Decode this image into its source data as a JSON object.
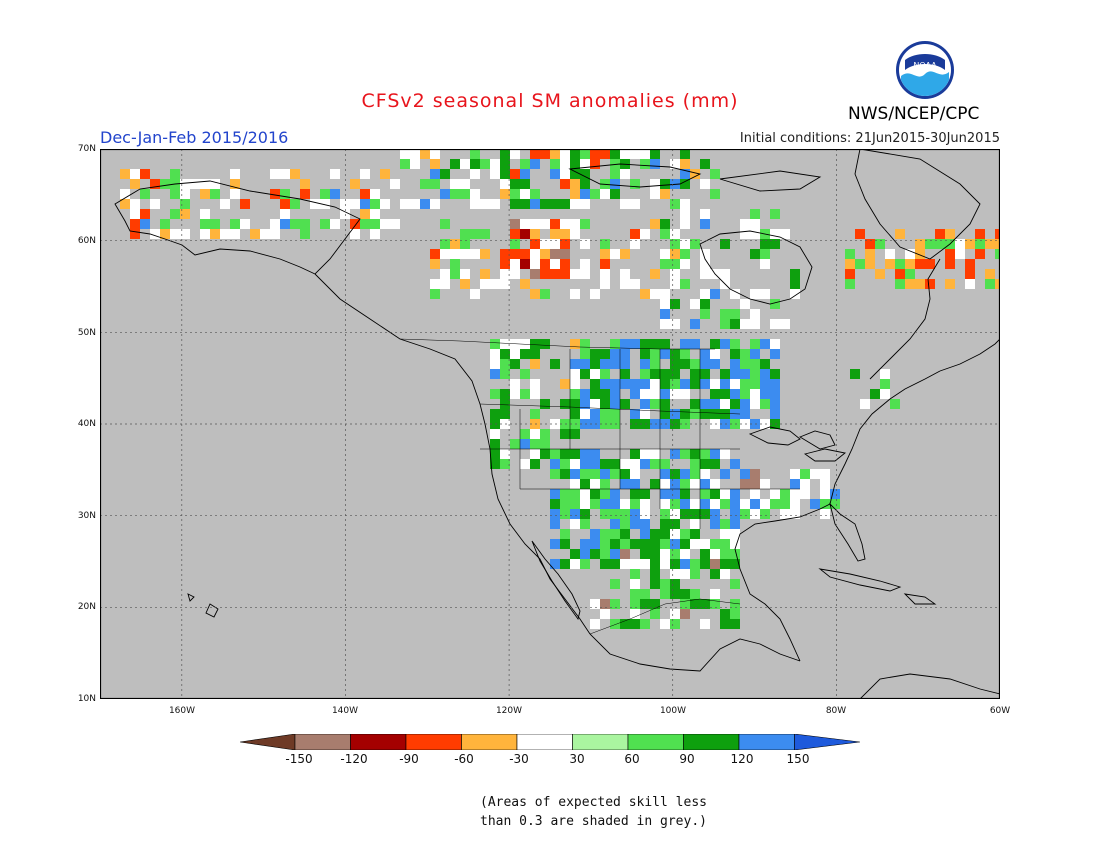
{
  "header": {
    "title": "CFSv2 seasonal SM anomalies (mm)",
    "season": "Dec-Jan-Feb 2015/2016",
    "initial_conditions": "Initial conditions: 21Jun2015-30Jun2015",
    "agency": "NWS/NCEP/CPC",
    "logo_text": "NOAA"
  },
  "map": {
    "projection": "lat-lon",
    "lon_range": [
      -170,
      -60
    ],
    "lat_range": [
      10,
      70
    ],
    "lat_labels": [
      "70N",
      "60N",
      "50N",
      "40N",
      "30N",
      "20N",
      "10N"
    ],
    "lon_labels": [
      "160W",
      "140W",
      "120W",
      "100W",
      "80W",
      "60W"
    ],
    "colors": {
      "grey_low_skill": "#bebebe",
      "land_outline": "#000000",
      "grid": "#555555"
    }
  },
  "legend": {
    "bins": [
      {
        "range": "< -150",
        "color": "#6e3a26"
      },
      {
        "range": "-150 to -120",
        "color": "#a87d6e"
      },
      {
        "range": "-120 to -90",
        "color": "#a40000"
      },
      {
        "range": "-90 to -60",
        "color": "#ff3c00"
      },
      {
        "range": "-60 to -30",
        "color": "#ffb43c"
      },
      {
        "range": "-30 to 30",
        "color": "#ffffff"
      },
      {
        "range": "30 to 60",
        "color": "#aaf5a0"
      },
      {
        "range": "60 to 90",
        "color": "#50e050"
      },
      {
        "range": "90 to 120",
        "color": "#0ea00e"
      },
      {
        "range": "120 to 150",
        "color": "#3c8cf0"
      },
      {
        "range": "> 150",
        "color": "#1e5adc"
      }
    ],
    "tick_labels": [
      "-150",
      "-120",
      "-90",
      "-60",
      "-30",
      "30",
      "60",
      "90",
      "120",
      "150"
    ]
  },
  "note": {
    "line1": "(Areas of expected skill less",
    "line2": "than 0.3 are shaded in grey.)"
  }
}
